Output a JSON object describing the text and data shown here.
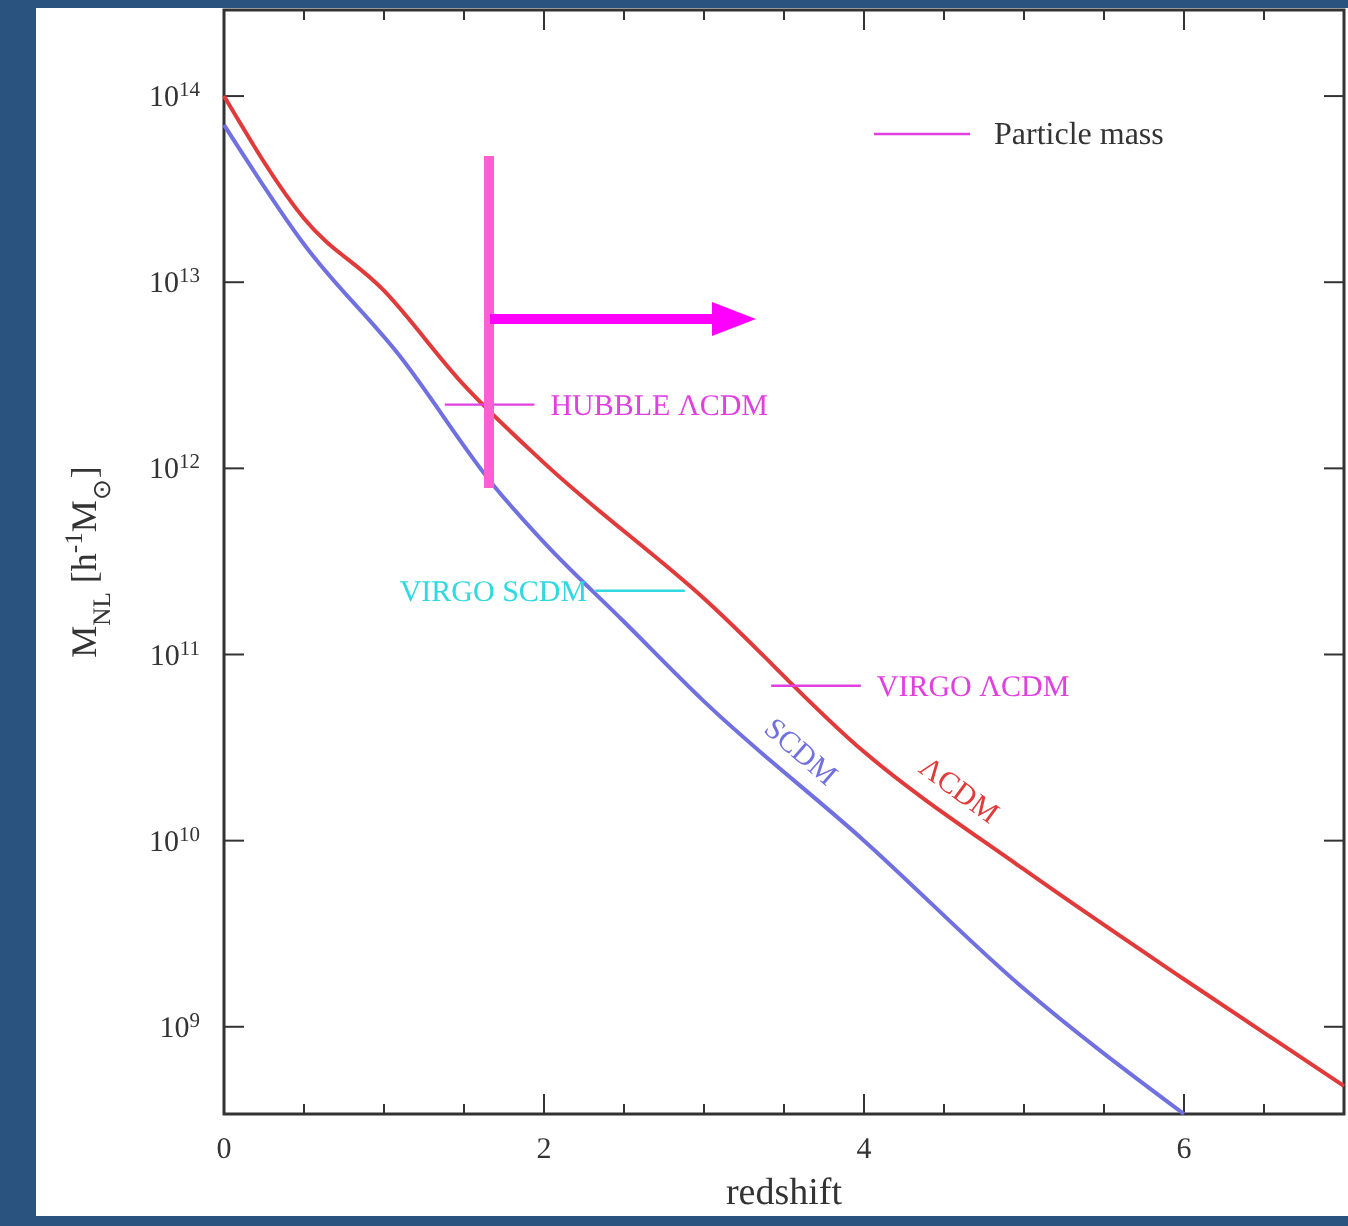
{
  "chart_data": {
    "type": "line",
    "xlabel": "redshift",
    "ylabel": "M$_{NL}$ [h$^{-1}$M$_{⊙}$]",
    "log": "y",
    "xlim": [
      0,
      7
    ],
    "ylim": [
      340000000.0,
      290000000000000.0
    ],
    "xticks": [
      0,
      {
        "value": 0.5,
        "label": null
      },
      {
        "value": 1,
        "label": null
      },
      {
        "value": 1.5,
        "label": null
      },
      2,
      {
        "value": 2.5,
        "label": null
      },
      {
        "value": 3,
        "label": null
      },
      {
        "value": 3.5,
        "label": null
      },
      4,
      {
        "value": 4.5,
        "label": null
      },
      {
        "value": 5,
        "label": null
      },
      {
        "value": 5.5,
        "label": null
      },
      6,
      {
        "value": 6.5,
        "label": null
      }
    ],
    "yticks": [
      {
        "value": 1000000000.0,
        "label": "10$^{9}$"
      },
      {
        "value": 10000000000.0,
        "label": "10$^{10}$"
      },
      {
        "value": 100000000000.0,
        "label": "10$^{11}$"
      },
      {
        "value": 1000000000000.0,
        "label": "10$^{12}$"
      },
      {
        "value": 10000000000000.0,
        "label": "10$^{13}$"
      },
      {
        "value": 100000000000000.0,
        "label": "10$^{14}$"
      }
    ],
    "grid": false,
    "legend": "top right",
    "series": [
      {
        "name": "ΛCDM",
        "color": "#e03a3a",
        "x": [
          0,
          0.5,
          1,
          1.5,
          2,
          3,
          4,
          5,
          6,
          7
        ],
        "values": [
          100000000000000.0,
          22000000000000.0,
          9000000000000.0,
          2800000000000.0,
          1070000000000.0,
          200000000000.0,
          30000000000.0,
          7000000000.0,
          1800000000.0,
          480000000.0
        ]
      },
      {
        "name": "SCDM",
        "color": "#7070e0",
        "x": [
          0,
          0.5,
          1.1,
          1.69,
          2,
          2.5,
          3,
          4,
          5,
          6
        ],
        "values": [
          70000000000000.0,
          16000000000000.0,
          4000000000000.0,
          800000000000.0,
          400000000000.0,
          150000000000.0,
          56000000000.0,
          10000000000.0,
          1600000000.0,
          340000000.0
        ]
      },
      {
        "name": "Particle mass",
        "color": "#e040e0",
        "x": [
          1.38,
          1.94
        ],
        "values": [
          2200000000000.0,
          2200000000000.0
        ]
      },
      {
        "color": "#30d8e0",
        "x": [
          2.32,
          2.88
        ],
        "values": [
          220000000000.0,
          220000000000.0
        ]
      },
      {
        "color": "#e040e0",
        "x": [
          3.42,
          3.98
        ],
        "values": [
          68000000000.0,
          68000000000.0
        ]
      }
    ],
    "annotations": [
      {
        "text": "HUBBLE ΛCDM",
        "x": 1.94,
        "y": 2200000000000.0
      },
      {
        "text": "VIRGO SCDM",
        "x": 2.32,
        "y": 220000000000.0
      },
      {
        "text": "VIRGO ΛCDM",
        "x": 3.98,
        "y": 68000000000.0
      }
    ]
  }
}
